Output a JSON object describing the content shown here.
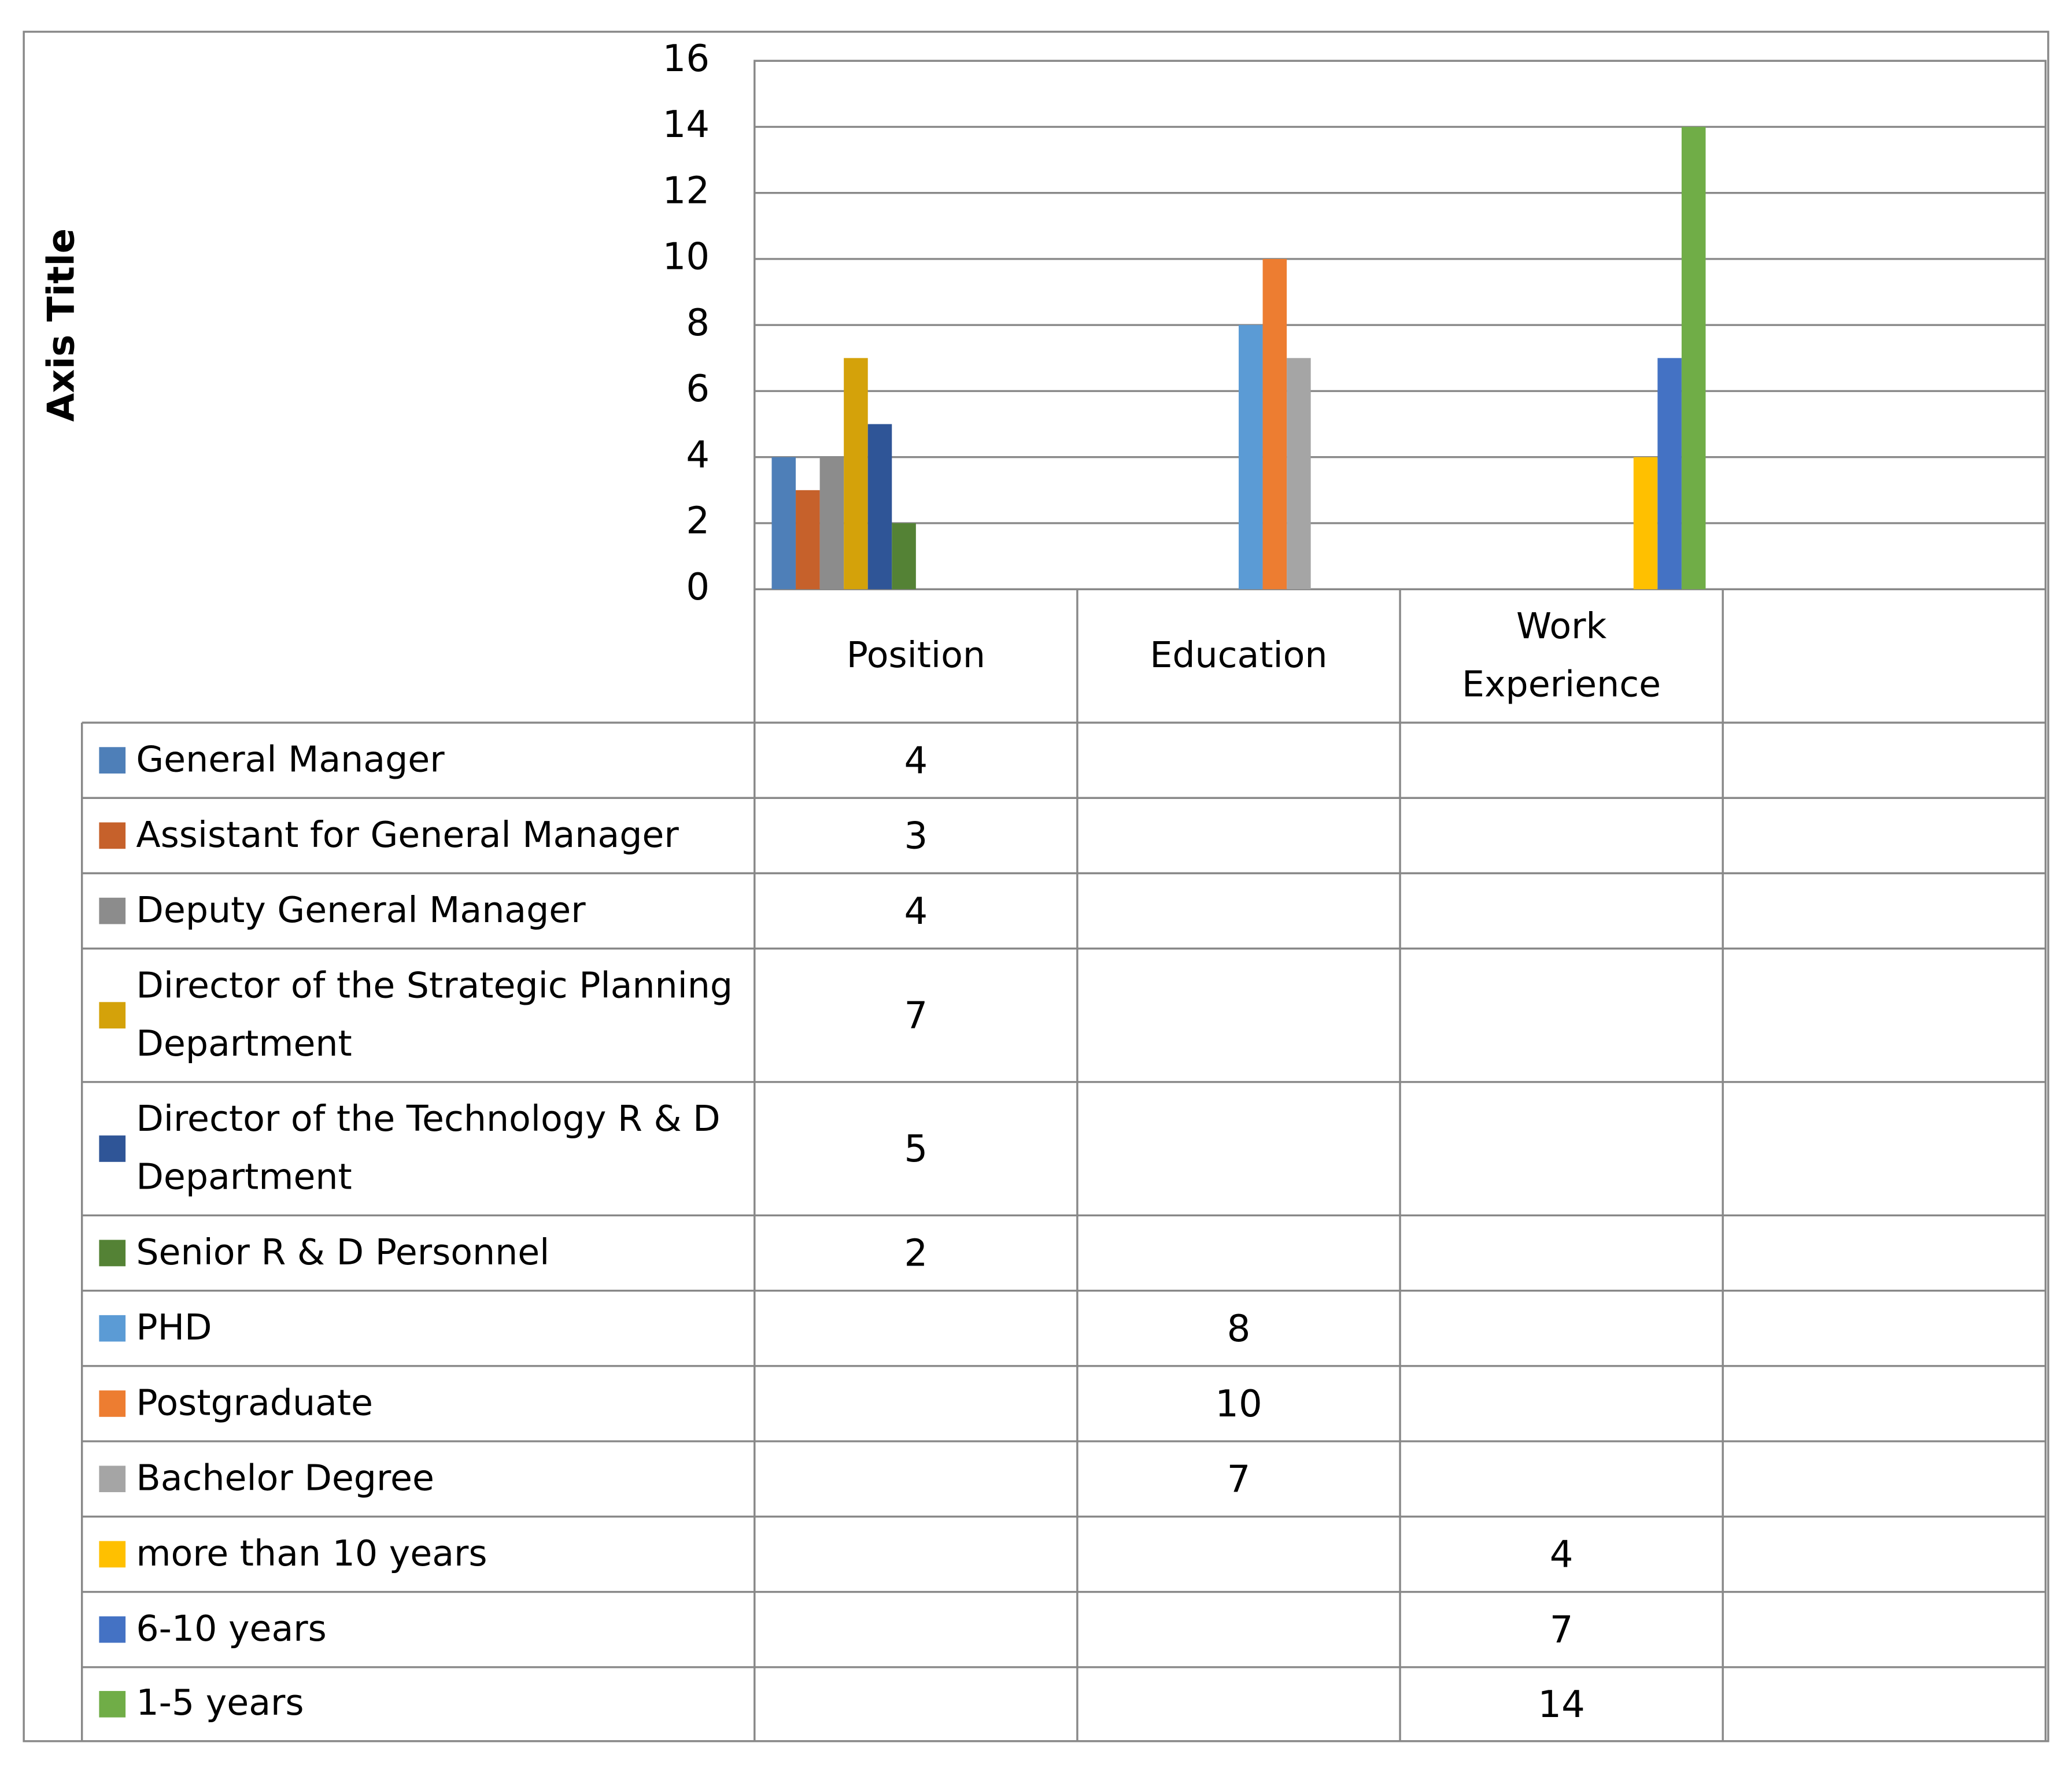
{
  "chart_data": {
    "type": "bar",
    "y_label": "Axis Title",
    "categories": [
      "Position",
      "Education",
      "Work Experience",
      null
    ],
    "series": [
      {
        "name": "General Manager",
        "color": "#4e7fb8",
        "values": [
          4,
          null,
          null,
          null
        ]
      },
      {
        "name": "Assistant for General Manager",
        "color": "#c6612b",
        "values": [
          3,
          null,
          null,
          null
        ]
      },
      {
        "name": "Deputy General Manager",
        "color": "#8c8c8c",
        "values": [
          4,
          null,
          null,
          null
        ]
      },
      {
        "name": "Director of the Strategic Planning Department",
        "color": "#d4a20a",
        "values": [
          7,
          null,
          null,
          null
        ]
      },
      {
        "name": "Director of the Technology R & D Department",
        "color": "#2f5597",
        "values": [
          5,
          null,
          null,
          null
        ]
      },
      {
        "name": "Senior R & D Personnel",
        "color": "#548235",
        "values": [
          2,
          null,
          null,
          null
        ]
      },
      {
        "name": "PHD",
        "color": "#5b9bd5",
        "values": [
          null,
          8,
          null,
          null
        ]
      },
      {
        "name": "Postgraduate",
        "color": "#ed7d31",
        "values": [
          null,
          10,
          null,
          null
        ]
      },
      {
        "name": "Bachelor Degree",
        "color": "#a5a5a5",
        "values": [
          null,
          7,
          null,
          null
        ]
      },
      {
        "name": "more than 10 years",
        "color": "#ffc000",
        "values": [
          null,
          null,
          4,
          null
        ]
      },
      {
        "name": "6-10 years",
        "color": "#4472c4",
        "values": [
          null,
          null,
          7,
          null
        ]
      },
      {
        "name": "1-5 years",
        "color": "#70ad47",
        "values": [
          null,
          null,
          14,
          null
        ]
      }
    ],
    "ylim": [
      0,
      16
    ],
    "yticks": [
      0,
      2,
      4,
      6,
      8,
      10,
      12,
      14,
      16
    ],
    "grid": true
  }
}
